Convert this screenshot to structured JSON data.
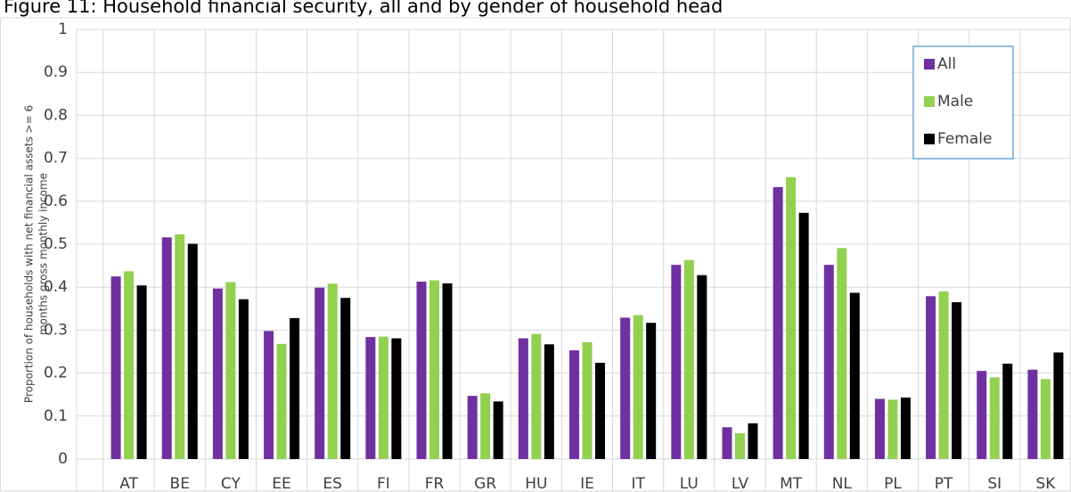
{
  "chart_data": {
    "type": "bar",
    "title": "Figure 11: Household financial security, all and by gender of household head",
    "y_label": [
      "Proportion of households with net financial assets >= 6",
      "months gross monthly income"
    ],
    "categories": [
      "AT",
      "BE",
      "CY",
      "EE",
      "ES",
      "FI",
      "FR",
      "GR",
      "HU",
      "IE",
      "IT",
      "LU",
      "LV",
      "MT",
      "NL",
      "PL",
      "PT",
      "SI",
      "SK"
    ],
    "series": [
      {
        "name": "All",
        "color": "#7030a0",
        "values": [
          0.425,
          0.516,
          0.397,
          0.298,
          0.399,
          0.284,
          0.413,
          0.147,
          0.281,
          0.253,
          0.329,
          0.452,
          0.074,
          0.633,
          0.452,
          0.14,
          0.379,
          0.205,
          0.208
        ]
      },
      {
        "name": "Male",
        "color": "#92d050",
        "values": [
          0.437,
          0.523,
          0.412,
          0.268,
          0.408,
          0.285,
          0.416,
          0.153,
          0.291,
          0.272,
          0.335,
          0.463,
          0.06,
          0.656,
          0.491,
          0.138,
          0.39,
          0.19,
          0.186
        ]
      },
      {
        "name": "Female",
        "color": "#000000",
        "values": [
          0.404,
          0.501,
          0.372,
          0.328,
          0.375,
          0.281,
          0.409,
          0.134,
          0.267,
          0.224,
          0.317,
          0.428,
          0.083,
          0.573,
          0.387,
          0.143,
          0.365,
          0.222,
          0.248
        ]
      }
    ],
    "ylim": [
      0,
      1
    ],
    "yticks": [
      0,
      0.1,
      0.2,
      0.3,
      0.4,
      0.5,
      0.6,
      0.7,
      0.8,
      0.9,
      1
    ],
    "grid": true,
    "legend": "upper right"
  }
}
